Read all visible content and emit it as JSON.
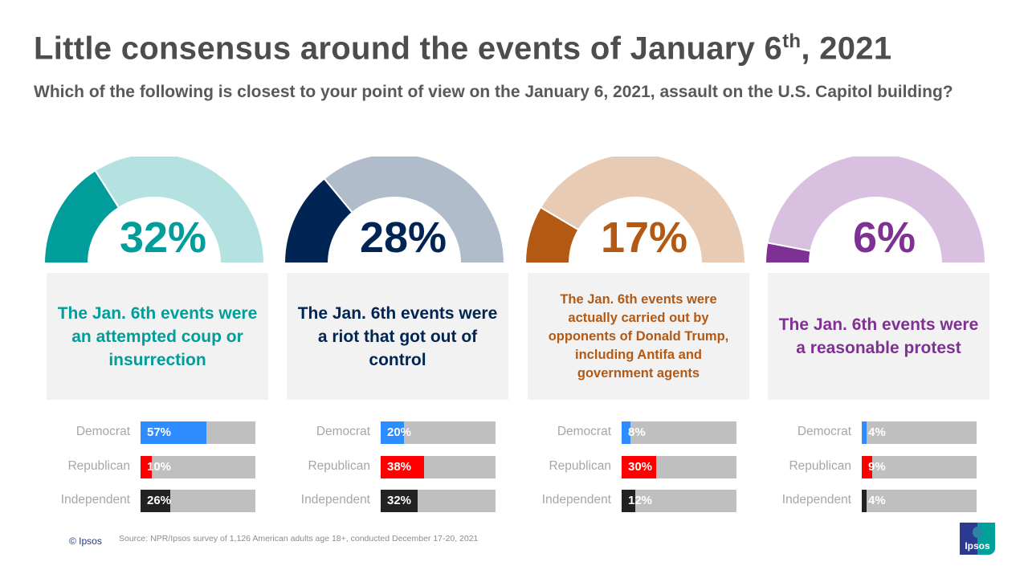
{
  "title": "Little consensus around the events of January 6",
  "title_sup": "th",
  "title_tail": ", 2021",
  "subtitle": "Which of the following is closest to your point of view on the January 6, 2021, assault on the U.S. Capitol building?",
  "chart_data": [
    {
      "type": "gauge",
      "value": 32,
      "label": "32%",
      "statement": "The Jan. 6th events were an attempted coup or insurrection",
      "colors": {
        "fill": "#009d9a",
        "rest": "#b3e2e1"
      },
      "bars": {
        "type": "bar",
        "categories": [
          "Democrat",
          "Republican",
          "Independent"
        ],
        "values": [
          57,
          10,
          26
        ],
        "labels": [
          "57%",
          "10%",
          "26%"
        ],
        "colors": [
          "#2d8cff",
          "#ff0000",
          "#222222"
        ],
        "xlim": [
          0,
          100
        ]
      }
    },
    {
      "type": "gauge",
      "value": 28,
      "label": "28%",
      "statement": "The Jan. 6th events were a riot that got out of control",
      "colors": {
        "fill": "#002554",
        "rest": "#b1bccb"
      },
      "bars": {
        "type": "bar",
        "categories": [
          "Democrat",
          "Republican",
          "Independent"
        ],
        "values": [
          20,
          38,
          32
        ],
        "labels": [
          "20%",
          "38%",
          "32%"
        ],
        "colors": [
          "#2d8cff",
          "#ff0000",
          "#222222"
        ],
        "xlim": [
          0,
          100
        ]
      }
    },
    {
      "type": "gauge",
      "value": 17,
      "label": "17%",
      "statement": "The Jan. 6th events were actually carried out by opponents of Donald Trump, including Antifa and government agents",
      "colors": {
        "fill": "#b35914",
        "rest": "#e8cbb4"
      },
      "bars": {
        "type": "bar",
        "categories": [
          "Democrat",
          "Republican",
          "Independent"
        ],
        "values": [
          8,
          30,
          12
        ],
        "labels": [
          "8%",
          "30%",
          "12%"
        ],
        "colors": [
          "#2d8cff",
          "#ff0000",
          "#222222"
        ],
        "xlim": [
          0,
          100
        ]
      }
    },
    {
      "type": "gauge",
      "value": 6,
      "label": "6%",
      "statement": "The Jan. 6th events were a reasonable protest",
      "colors": {
        "fill": "#7f3193",
        "rest": "#d9c0e0"
      },
      "bars": {
        "type": "bar",
        "categories": [
          "Democrat",
          "Republican",
          "Independent"
        ],
        "values": [
          4,
          9,
          4
        ],
        "labels": [
          "4%",
          "9%",
          "4%"
        ],
        "colors": [
          "#2d8cff",
          "#ff0000",
          "#222222"
        ],
        "xlim": [
          0,
          100
        ]
      }
    }
  ],
  "footer": {
    "copyright": "© Ipsos",
    "source": "Source: NPR/Ipsos  survey of 1,126 American adults age 18+,  conducted December 17-20, 2021",
    "logo": "Ipsos"
  }
}
